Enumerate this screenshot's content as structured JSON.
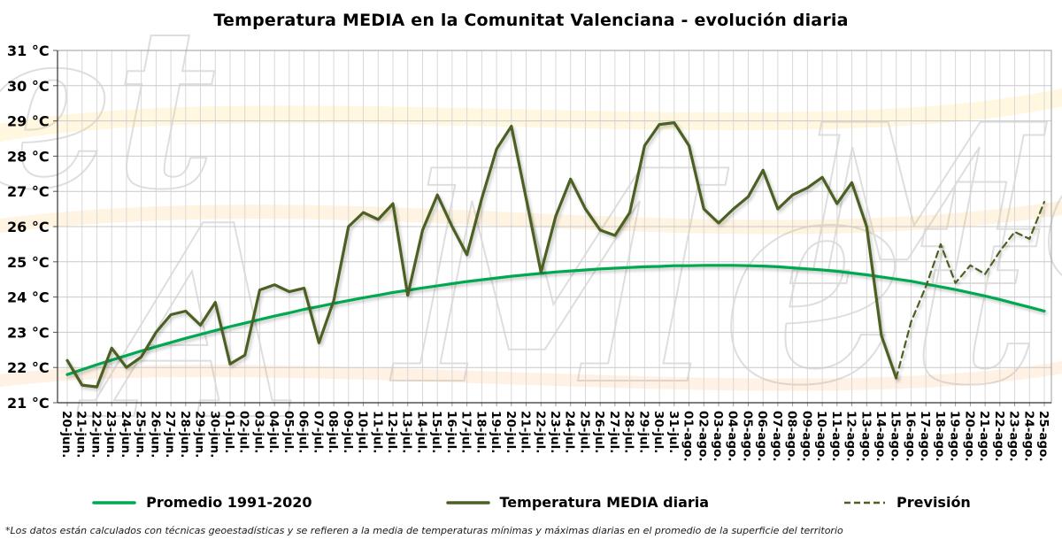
{
  "watermark": {
    "t1": "et",
    "t2": "Met",
    "t3": "Met",
    "t4": "A"
  },
  "legend": [
    {
      "label": "Promedio 1991-2020",
      "color": "#00a84f",
      "style": "solid"
    },
    {
      "label": "Temperatura MEDIA diaria",
      "color": "#4b6021",
      "style": "solid"
    },
    {
      "label": "Previsión",
      "color": "#4b6021",
      "style": "dashed"
    }
  ],
  "footnote": "*Los datos están calculados con técnicas geoestadísticas y se refieren a la media de temperaturas mínimas y máximas diarias en el promedio de la superficie del territorio",
  "chart_data": {
    "type": "line",
    "title": "Temperatura MEDIA en la Comunitat Valenciana - evolución diaria",
    "xlabel": "",
    "ylabel": "°C",
    "ylim": [
      21,
      31
    ],
    "grid": true,
    "legend_position": "bottom",
    "y_ticks": [
      "31 °C",
      "30 °C",
      "29 °C",
      "28 °C",
      "27 °C",
      "26 °C",
      "25 °C",
      "24 °C",
      "23 °C",
      "22 °C",
      "21 °C"
    ],
    "categories": [
      "20-jun.",
      "21-jun.",
      "22-jun.",
      "23-jun.",
      "24-jun.",
      "25-jun.",
      "26-jun.",
      "27-jun.",
      "28-jun.",
      "29-jun.",
      "30-jun.",
      "01-jul.",
      "02-jul.",
      "03-jul.",
      "04-jul.",
      "05-jul.",
      "06-jul.",
      "07-jul.",
      "08-jul.",
      "09-jul.",
      "10-jul.",
      "11-jul.",
      "12-jul.",
      "13-jul.",
      "14-jul.",
      "15-jul.",
      "16-jul.",
      "17-jul.",
      "18-jul.",
      "19-jul.",
      "20-jul.",
      "21-jul.",
      "22-jul.",
      "23-jul.",
      "24-jul.",
      "25-jul.",
      "26-jul.",
      "27-jul.",
      "28-jul.",
      "29-jul.",
      "30-jul.",
      "31-jul.",
      "01-ago.",
      "02-ago.",
      "03-ago.",
      "04-ago.",
      "05-ago.",
      "06-ago.",
      "07-ago.",
      "08-ago.",
      "09-ago.",
      "10-ago.",
      "11-ago.",
      "12-ago.",
      "13-ago.",
      "14-ago.",
      "15-ago.",
      "16-ago.",
      "17-ago.",
      "18-ago.",
      "19-ago.",
      "20-ago.",
      "21-ago.",
      "22-ago.",
      "23-ago.",
      "24-ago.",
      "25-ago."
    ],
    "series": [
      {
        "name": "Promedio 1991-2020",
        "color": "#00a84f",
        "dash": false,
        "width": 3.2,
        "values": [
          21.8,
          21.94,
          22.08,
          22.21,
          22.34,
          22.47,
          22.59,
          22.71,
          22.83,
          22.94,
          23.05,
          23.16,
          23.26,
          23.36,
          23.46,
          23.55,
          23.65,
          23.73,
          23.82,
          23.9,
          23.98,
          24.05,
          24.13,
          24.19,
          24.26,
          24.32,
          24.38,
          24.44,
          24.49,
          24.54,
          24.59,
          24.63,
          24.67,
          24.71,
          24.74,
          24.77,
          24.8,
          24.82,
          24.84,
          24.86,
          24.87,
          24.89,
          24.89,
          24.9,
          24.9,
          24.9,
          24.89,
          24.88,
          24.86,
          24.83,
          24.8,
          24.77,
          24.73,
          24.68,
          24.63,
          24.57,
          24.51,
          24.45,
          24.37,
          24.29,
          24.21,
          24.12,
          24.03,
          23.93,
          23.82,
          23.71,
          23.6
        ]
      },
      {
        "name": "Temperatura MEDIA diaria",
        "color": "#4b6021",
        "dash": false,
        "width": 3.2,
        "values": [
          22.2,
          21.5,
          21.45,
          22.55,
          22.0,
          22.3,
          23.0,
          23.5,
          23.6,
          23.2,
          23.85,
          22.1,
          22.35,
          24.2,
          24.35,
          24.15,
          24.25,
          22.7,
          23.9,
          26.0,
          26.4,
          26.2,
          26.65,
          24.05,
          25.9,
          26.9,
          26.0,
          25.2,
          26.8,
          28.2,
          28.85,
          26.8,
          24.7,
          26.3,
          27.35,
          26.5,
          25.9,
          25.75,
          26.4,
          28.3,
          28.9,
          28.95,
          28.3,
          26.5,
          26.1,
          26.5,
          26.85,
          27.6,
          26.5,
          26.9,
          27.1,
          27.4,
          26.65,
          27.25,
          26.0,
          22.9,
          21.7,
          null,
          null,
          null,
          null,
          null,
          null,
          null,
          null,
          null,
          null
        ]
      },
      {
        "name": "Previsión",
        "color": "#4b6021",
        "dash": true,
        "width": 2.2,
        "values": [
          null,
          null,
          null,
          null,
          null,
          null,
          null,
          null,
          null,
          null,
          null,
          null,
          null,
          null,
          null,
          null,
          null,
          null,
          null,
          null,
          null,
          null,
          null,
          null,
          null,
          null,
          null,
          null,
          null,
          null,
          null,
          null,
          null,
          null,
          null,
          null,
          null,
          null,
          null,
          null,
          null,
          null,
          null,
          null,
          null,
          null,
          null,
          null,
          null,
          null,
          null,
          null,
          null,
          null,
          null,
          null,
          21.7,
          23.3,
          24.3,
          25.5,
          24.4,
          24.9,
          24.65,
          25.3,
          25.85,
          25.65,
          26.7
        ]
      }
    ]
  }
}
